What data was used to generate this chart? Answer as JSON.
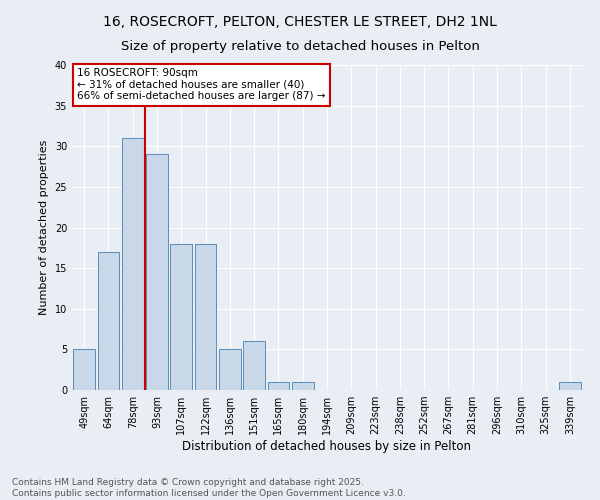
{
  "title1": "16, ROSECROFT, PELTON, CHESTER LE STREET, DH2 1NL",
  "title2": "Size of property relative to detached houses in Pelton",
  "xlabel": "Distribution of detached houses by size in Pelton",
  "ylabel": "Number of detached properties",
  "categories": [
    "49sqm",
    "64sqm",
    "78sqm",
    "93sqm",
    "107sqm",
    "122sqm",
    "136sqm",
    "151sqm",
    "165sqm",
    "180sqm",
    "194sqm",
    "209sqm",
    "223sqm",
    "238sqm",
    "252sqm",
    "267sqm",
    "281sqm",
    "296sqm",
    "310sqm",
    "325sqm",
    "339sqm"
  ],
  "values": [
    5,
    17,
    31,
    29,
    18,
    18,
    5,
    6,
    1,
    1,
    0,
    0,
    0,
    0,
    0,
    0,
    0,
    0,
    0,
    0,
    1
  ],
  "bar_color": "#c8d8e8",
  "bar_edge_color": "#5b8db8",
  "vline_x_idx": 3,
  "vline_color": "#cc0000",
  "annotation_text": "16 ROSECROFT: 90sqm\n← 31% of detached houses are smaller (40)\n66% of semi-detached houses are larger (87) →",
  "annotation_box_color": "#ffffff",
  "annotation_box_edge": "#cc0000",
  "annotation_fontsize": 7.5,
  "ylim": [
    0,
    40
  ],
  "yticks": [
    0,
    5,
    10,
    15,
    20,
    25,
    30,
    35,
    40
  ],
  "background_color": "#e8eef4",
  "grid_color": "#ffffff",
  "footer": "Contains HM Land Registry data © Crown copyright and database right 2025.\nContains public sector information licensed under the Open Government Licence v3.0.",
  "title1_fontsize": 10,
  "title2_fontsize": 9.5,
  "xlabel_fontsize": 8.5,
  "ylabel_fontsize": 8,
  "tick_fontsize": 7,
  "footer_fontsize": 6.5
}
